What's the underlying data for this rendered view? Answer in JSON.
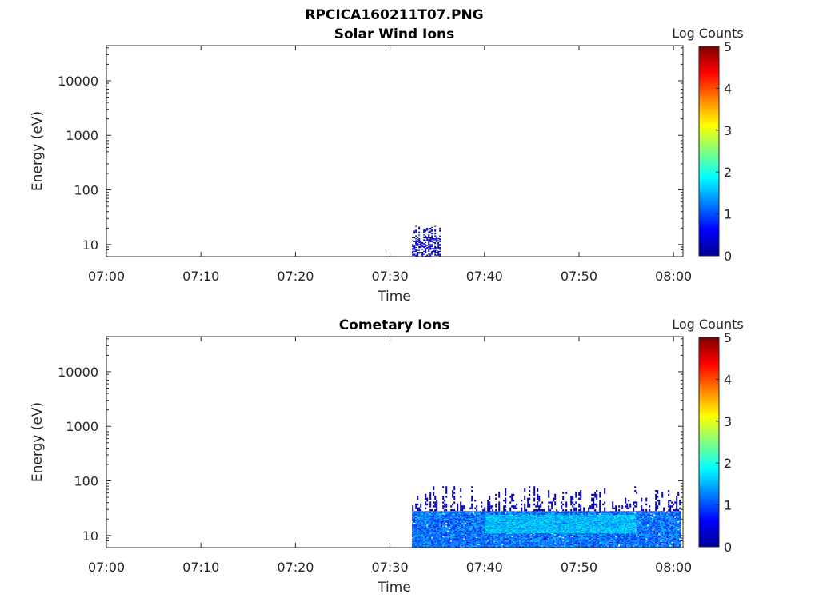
{
  "figure": {
    "title": "RPCICA160211T07.PNG"
  },
  "colors": {
    "colormap": [
      "#00008f",
      "#0000ff",
      "#0080ff",
      "#00ffff",
      "#80ff80",
      "#ffff00",
      "#ff8000",
      "#ff0000",
      "#800000"
    ],
    "axis": "#262626"
  },
  "chart_data": [
    {
      "type": "heatmap",
      "title": "Solar Wind Ions",
      "xlabel": "Time",
      "ylabel": "Energy (eV)",
      "yscale": "log",
      "xlim": [
        "07:00",
        "08:01"
      ],
      "ylim": [
        6,
        44000
      ],
      "xticks": [
        "07:00",
        "07:10",
        "07:20",
        "07:30",
        "07:40",
        "07:50",
        "08:00"
      ],
      "yticks": [
        "10",
        "100",
        "1000",
        "10000"
      ],
      "colorbar": {
        "label": "Log Counts",
        "range": [
          0,
          5
        ],
        "ticks": [
          "0",
          "1",
          "2",
          "3",
          "4",
          "5"
        ]
      },
      "data_regions": [
        {
          "time_start": "07:32:20",
          "time_end": "07:35:20",
          "energy_min": 6,
          "energy_max": 22,
          "log_counts": 0.2,
          "density": "sparse"
        }
      ]
    },
    {
      "type": "heatmap",
      "title": "Cometary Ions",
      "xlabel": "Time",
      "ylabel": "Energy (eV)",
      "yscale": "log",
      "xlim": [
        "07:00",
        "08:01"
      ],
      "ylim": [
        6,
        44000
      ],
      "xticks": [
        "07:00",
        "07:10",
        "07:20",
        "07:30",
        "07:40",
        "07:50",
        "08:00"
      ],
      "yticks": [
        "10",
        "100",
        "1000",
        "10000"
      ],
      "colorbar": {
        "label": "Log Counts",
        "range": [
          0,
          5
        ],
        "ticks": [
          "0",
          "1",
          "2",
          "3",
          "4",
          "5"
        ]
      },
      "data_regions": [
        {
          "time_start": "07:32:20",
          "time_end": "08:00:45",
          "energy_min": 6,
          "energy_max": 80,
          "log_counts": 0.2,
          "density": "sparse"
        },
        {
          "time_start": "07:32:20",
          "time_end": "08:00:45",
          "energy_min": 6,
          "energy_max": 28,
          "log_counts": 1.2,
          "density": "dense"
        },
        {
          "time_start": "07:40:00",
          "time_end": "07:56:00",
          "energy_min": 11,
          "energy_max": 24,
          "log_counts": 1.6,
          "density": "dense"
        }
      ]
    }
  ]
}
